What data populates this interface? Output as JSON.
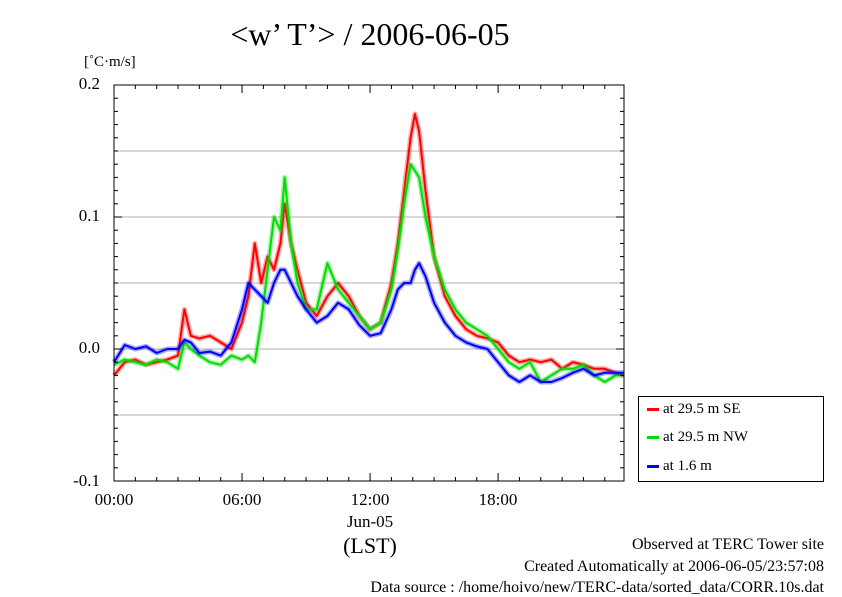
{
  "chart_data": {
    "type": "line",
    "title": "<w’ T’> / 2006-06-05",
    "unit_label": "[˚C·m/s]",
    "xlabel": "(LST)",
    "date_label": "Jun-05",
    "xlim": [
      0,
      23.9
    ],
    "ylim": [
      -0.1,
      0.2
    ],
    "x_ticks": [
      "00:00",
      "06:00",
      "12:00",
      "18:00"
    ],
    "y_ticks": [
      "0.2",
      "0.1",
      "0.0",
      "-0.1"
    ],
    "legend_position": "bottom-right",
    "colors": {
      "se": "#ff0000",
      "nw": "#00dd00",
      "low": "#0000ff"
    },
    "series": [
      {
        "name": "at 29.5 m SE",
        "color": "#ff0000",
        "points": [
          [
            0,
            -0.02
          ],
          [
            0.5,
            -0.01
          ],
          [
            1,
            -0.008
          ],
          [
            1.5,
            -0.012
          ],
          [
            2,
            -0.01
          ],
          [
            2.5,
            -0.008
          ],
          [
            3,
            -0.005
          ],
          [
            3.3,
            0.03
          ],
          [
            3.6,
            0.01
          ],
          [
            4,
            0.008
          ],
          [
            4.5,
            0.01
          ],
          [
            5,
            0.005
          ],
          [
            5.5,
            0.0
          ],
          [
            6,
            0.02
          ],
          [
            6.3,
            0.04
          ],
          [
            6.6,
            0.08
          ],
          [
            6.9,
            0.05
          ],
          [
            7.2,
            0.07
          ],
          [
            7.5,
            0.06
          ],
          [
            7.8,
            0.08
          ],
          [
            8.0,
            0.11
          ],
          [
            8.3,
            0.08
          ],
          [
            8.6,
            0.06
          ],
          [
            9,
            0.035
          ],
          [
            9.5,
            0.025
          ],
          [
            10,
            0.04
          ],
          [
            10.5,
            0.05
          ],
          [
            11,
            0.04
          ],
          [
            11.5,
            0.025
          ],
          [
            12,
            0.015
          ],
          [
            12.5,
            0.02
          ],
          [
            13,
            0.05
          ],
          [
            13.3,
            0.08
          ],
          [
            13.6,
            0.12
          ],
          [
            13.9,
            0.16
          ],
          [
            14.1,
            0.178
          ],
          [
            14.3,
            0.165
          ],
          [
            14.6,
            0.12
          ],
          [
            15,
            0.07
          ],
          [
            15.5,
            0.04
          ],
          [
            16,
            0.025
          ],
          [
            16.5,
            0.015
          ],
          [
            17,
            0.01
          ],
          [
            17.5,
            0.008
          ],
          [
            18,
            0.005
          ],
          [
            18.5,
            -0.005
          ],
          [
            19,
            -0.01
          ],
          [
            19.5,
            -0.008
          ],
          [
            20,
            -0.01
          ],
          [
            20.5,
            -0.008
          ],
          [
            21,
            -0.015
          ],
          [
            21.5,
            -0.01
          ],
          [
            22,
            -0.012
          ],
          [
            22.5,
            -0.015
          ],
          [
            23,
            -0.015
          ],
          [
            23.5,
            -0.018
          ],
          [
            23.9,
            -0.02
          ]
        ]
      },
      {
        "name": "at 29.5 m NW",
        "color": "#00dd00",
        "points": [
          [
            0,
            -0.012
          ],
          [
            0.5,
            -0.008
          ],
          [
            1,
            -0.01
          ],
          [
            1.5,
            -0.012
          ],
          [
            2,
            -0.008
          ],
          [
            2.5,
            -0.01
          ],
          [
            3,
            -0.015
          ],
          [
            3.3,
            0.005
          ],
          [
            3.6,
            0.0
          ],
          [
            4,
            -0.005
          ],
          [
            4.5,
            -0.01
          ],
          [
            5,
            -0.012
          ],
          [
            5.5,
            -0.005
          ],
          [
            6,
            -0.008
          ],
          [
            6.3,
            -0.005
          ],
          [
            6.6,
            -0.01
          ],
          [
            6.9,
            0.02
          ],
          [
            7.2,
            0.06
          ],
          [
            7.5,
            0.1
          ],
          [
            7.8,
            0.09
          ],
          [
            8.0,
            0.13
          ],
          [
            8.3,
            0.08
          ],
          [
            8.6,
            0.05
          ],
          [
            9,
            0.03
          ],
          [
            9.5,
            0.03
          ],
          [
            10,
            0.065
          ],
          [
            10.5,
            0.045
          ],
          [
            11,
            0.035
          ],
          [
            11.5,
            0.025
          ],
          [
            12,
            0.015
          ],
          [
            12.5,
            0.02
          ],
          [
            13,
            0.045
          ],
          [
            13.3,
            0.075
          ],
          [
            13.6,
            0.11
          ],
          [
            13.9,
            0.14
          ],
          [
            14.1,
            0.135
          ],
          [
            14.3,
            0.13
          ],
          [
            14.6,
            0.1
          ],
          [
            15,
            0.07
          ],
          [
            15.5,
            0.045
          ],
          [
            16,
            0.03
          ],
          [
            16.5,
            0.02
          ],
          [
            17,
            0.015
          ],
          [
            17.5,
            0.01
          ],
          [
            18,
            0.0
          ],
          [
            18.5,
            -0.01
          ],
          [
            19,
            -0.015
          ],
          [
            19.5,
            -0.01
          ],
          [
            20,
            -0.025
          ],
          [
            20.5,
            -0.02
          ],
          [
            21,
            -0.015
          ],
          [
            21.5,
            -0.015
          ],
          [
            22,
            -0.012
          ],
          [
            22.5,
            -0.02
          ],
          [
            23,
            -0.025
          ],
          [
            23.5,
            -0.02
          ],
          [
            23.9,
            -0.02
          ]
        ]
      },
      {
        "name": "at 1.6 m",
        "color": "#0000ff",
        "points": [
          [
            0,
            -0.01
          ],
          [
            0.5,
            0.003
          ],
          [
            1,
            0.0
          ],
          [
            1.5,
            0.002
          ],
          [
            2,
            -0.003
          ],
          [
            2.5,
            0.0
          ],
          [
            3,
            0.0
          ],
          [
            3.3,
            0.007
          ],
          [
            3.6,
            0.005
          ],
          [
            4,
            -0.003
          ],
          [
            4.5,
            -0.002
          ],
          [
            5,
            -0.005
          ],
          [
            5.5,
            0.005
          ],
          [
            6,
            0.03
          ],
          [
            6.3,
            0.05
          ],
          [
            6.6,
            0.045
          ],
          [
            6.9,
            0.04
          ],
          [
            7.2,
            0.035
          ],
          [
            7.5,
            0.05
          ],
          [
            7.8,
            0.06
          ],
          [
            8.0,
            0.06
          ],
          [
            8.3,
            0.05
          ],
          [
            8.6,
            0.04
          ],
          [
            9,
            0.03
          ],
          [
            9.5,
            0.02
          ],
          [
            10,
            0.025
          ],
          [
            10.5,
            0.035
          ],
          [
            11,
            0.03
          ],
          [
            11.5,
            0.018
          ],
          [
            12,
            0.01
          ],
          [
            12.5,
            0.012
          ],
          [
            13,
            0.03
          ],
          [
            13.3,
            0.045
          ],
          [
            13.6,
            0.05
          ],
          [
            13.9,
            0.05
          ],
          [
            14.1,
            0.06
          ],
          [
            14.3,
            0.065
          ],
          [
            14.6,
            0.055
          ],
          [
            15,
            0.035
          ],
          [
            15.5,
            0.02
          ],
          [
            16,
            0.01
          ],
          [
            16.5,
            0.005
          ],
          [
            17,
            0.002
          ],
          [
            17.5,
            0.0
          ],
          [
            18,
            -0.01
          ],
          [
            18.5,
            -0.02
          ],
          [
            19,
            -0.025
          ],
          [
            19.5,
            -0.02
          ],
          [
            20,
            -0.025
          ],
          [
            20.5,
            -0.025
          ],
          [
            21,
            -0.022
          ],
          [
            21.5,
            -0.018
          ],
          [
            22,
            -0.015
          ],
          [
            22.5,
            -0.02
          ],
          [
            23,
            -0.018
          ],
          [
            23.5,
            -0.018
          ],
          [
            23.9,
            -0.018
          ]
        ]
      }
    ]
  },
  "footer": {
    "line1": "Observed at TERC Tower site",
    "line2": "Created Automatically at 2006-06-05/23:57:08",
    "line3": "Data source : /home/hoivo/new/TERC-data/sorted_data/CORR.10s.dat"
  }
}
